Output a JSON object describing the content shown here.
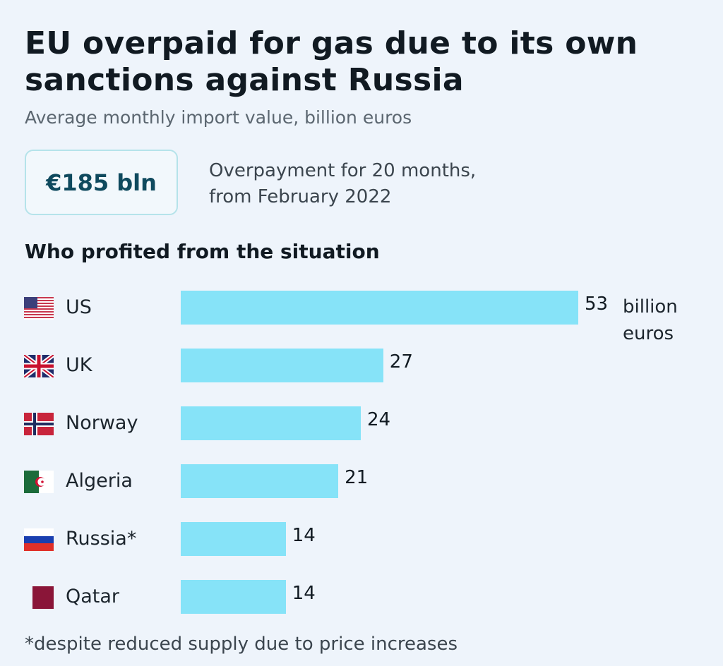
{
  "title": "EU overpaid for gas due to its own sanctions against Russia",
  "subtitle": "Average monthly import value, billion euros",
  "callout": {
    "value": "€185 bln",
    "text_line1": "Overpayment for 20 months,",
    "text_line2": "from February 2022"
  },
  "section_title": "Who profited from the situation",
  "footnote": "*despite reduced supply due to price increases",
  "chart_data": {
    "type": "bar",
    "orientation": "horizontal",
    "categories": [
      "US",
      "UK",
      "Norway",
      "Algeria",
      "Russia*",
      "Qatar"
    ],
    "values": [
      53,
      27,
      24,
      21,
      14,
      14
    ],
    "value_labels": [
      "53",
      "27",
      "24",
      "21",
      "14",
      "14"
    ],
    "unit_label": "billion euros",
    "flags": [
      "us-flag-icon",
      "uk-flag-icon",
      "norway-flag-icon",
      "algeria-flag-icon",
      "russia-flag-icon",
      "qatar-flag-icon"
    ],
    "bar_color": "#86e3f8",
    "xlim": [
      0,
      53
    ],
    "grid": false
  }
}
